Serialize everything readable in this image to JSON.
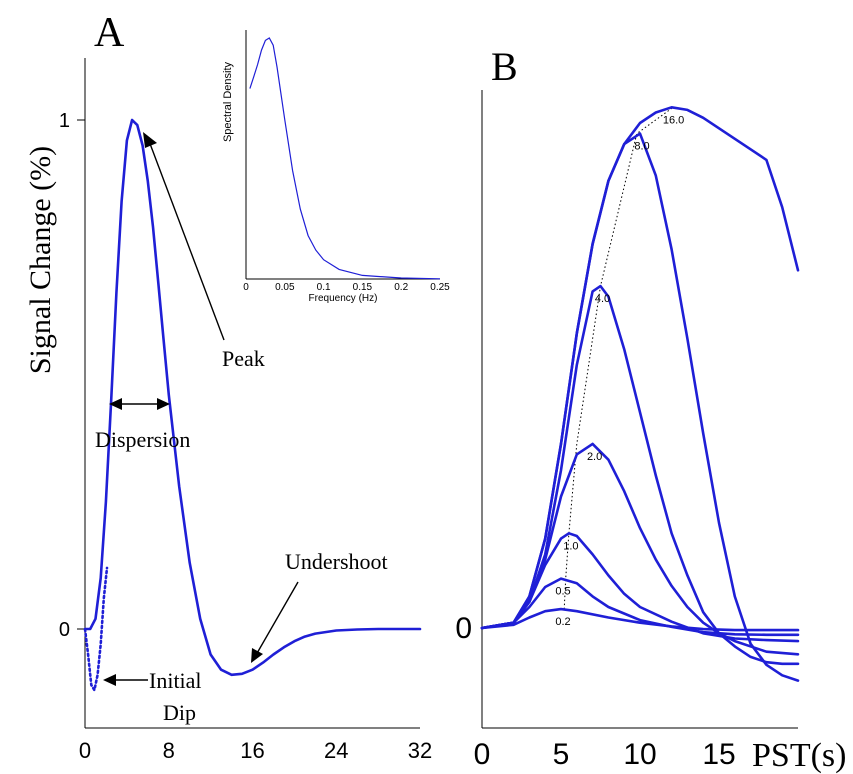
{
  "chart_data": [
    {
      "panel_label": "A",
      "type": "line",
      "ylabel": "Signal Change (%)",
      "x_ticks": [
        "0",
        "8",
        "16",
        "24",
        "32"
      ],
      "y_ticks": [
        "0",
        "1"
      ],
      "xlim": [
        0,
        32
      ],
      "ylim": [
        -0.15,
        1.1
      ],
      "series": [
        {
          "style": "solid",
          "x": [
            0,
            0.5,
            1,
            1.5,
            2,
            2.5,
            3,
            3.5,
            4,
            4.5,
            5,
            5.5,
            6,
            6.5,
            7,
            7.5,
            8,
            9,
            10,
            11,
            12,
            13,
            14,
            15,
            16,
            17,
            18,
            19,
            20,
            21,
            22,
            24,
            26,
            28,
            30,
            32
          ],
          "y": [
            0,
            0.0,
            0.02,
            0.1,
            0.25,
            0.45,
            0.66,
            0.84,
            0.96,
            1.0,
            0.99,
            0.95,
            0.88,
            0.79,
            0.68,
            0.57,
            0.46,
            0.28,
            0.13,
            0.02,
            -0.05,
            -0.08,
            -0.09,
            -0.088,
            -0.08,
            -0.066,
            -0.05,
            -0.036,
            -0.024,
            -0.015,
            -0.009,
            -0.003,
            -0.001,
            0.0,
            0.0,
            0.0
          ]
        },
        {
          "style": "dotted",
          "x": [
            0,
            0.3,
            0.6,
            0.9,
            1.2,
            1.5,
            1.8,
            2.1
          ],
          "y": [
            0,
            -0.05,
            -0.11,
            -0.12,
            -0.09,
            -0.03,
            0.06,
            0.12
          ]
        }
      ],
      "annotations": [
        {
          "text": "Peak"
        },
        {
          "text": "Dispersion"
        },
        {
          "text": "Undershoot"
        },
        {
          "text": "Initial"
        },
        {
          "text": "Dip"
        }
      ],
      "inset": {
        "type": "line",
        "ylabel": "Spectral Density",
        "xlabel": "Frequency (Hz)",
        "x_ticks": [
          "0",
          "0.05",
          "0.1",
          "0.15",
          "0.2",
          "0.25"
        ],
        "xlim": [
          0,
          0.25
        ],
        "ylim": [
          0,
          1.0
        ],
        "x": [
          0.005,
          0.01,
          0.015,
          0.02,
          0.025,
          0.03,
          0.035,
          0.04,
          0.05,
          0.06,
          0.07,
          0.08,
          0.09,
          0.1,
          0.12,
          0.15,
          0.2,
          0.25
        ],
        "y": [
          0.79,
          0.84,
          0.89,
          0.95,
          0.99,
          1.0,
          0.97,
          0.88,
          0.66,
          0.45,
          0.29,
          0.18,
          0.12,
          0.08,
          0.04,
          0.015,
          0.004,
          0.001
        ]
      }
    },
    {
      "panel_label": "B",
      "type": "line",
      "x_ticks": [
        "0",
        "5",
        "10",
        "15"
      ],
      "x_axis_label": "PST(s)",
      "y_ticks": [
        "0"
      ],
      "xlim": [
        0,
        20
      ],
      "ylim": [
        -0.1,
        1.0
      ],
      "series": [
        {
          "name": "0.2",
          "x": [
            0,
            2,
            3,
            4,
            5,
            6,
            8,
            10,
            12,
            14,
            16,
            18,
            20
          ],
          "y": [
            0,
            0.006,
            0.02,
            0.032,
            0.036,
            0.032,
            0.02,
            0.01,
            0.003,
            -0.002,
            -0.004,
            -0.004,
            -0.004
          ]
        },
        {
          "name": "0.5",
          "x": [
            0,
            2,
            3,
            4,
            5,
            6,
            7,
            8,
            10,
            12,
            14,
            16,
            18,
            20
          ],
          "y": [
            0,
            0.01,
            0.04,
            0.078,
            0.094,
            0.085,
            0.06,
            0.04,
            0.015,
            0.002,
            -0.008,
            -0.012,
            -0.013,
            -0.013
          ]
        },
        {
          "name": "1.0",
          "x": [
            0,
            2,
            3,
            4,
            5,
            5.5,
            6,
            7,
            8,
            9,
            10,
            12,
            14,
            16,
            18,
            20
          ],
          "y": [
            0,
            0.01,
            0.05,
            0.12,
            0.17,
            0.18,
            0.175,
            0.14,
            0.1,
            0.065,
            0.04,
            0.012,
            -0.01,
            -0.02,
            -0.023,
            -0.025
          ]
        },
        {
          "name": "2.0",
          "x": [
            0,
            2,
            3,
            4,
            5,
            6,
            7,
            8,
            9,
            10,
            11,
            12,
            13,
            14,
            15,
            16,
            18,
            20
          ],
          "y": [
            0,
            0.01,
            0.05,
            0.13,
            0.25,
            0.33,
            0.35,
            0.32,
            0.26,
            0.19,
            0.13,
            0.08,
            0.04,
            0.01,
            -0.01,
            -0.025,
            -0.045,
            -0.05
          ]
        },
        {
          "name": "4.0",
          "x": [
            0,
            2,
            3,
            4,
            5,
            6,
            7,
            7.5,
            8,
            9,
            10,
            11,
            12,
            13,
            14,
            15,
            16,
            17,
            18,
            19,
            20
          ],
          "y": [
            0,
            0.01,
            0.05,
            0.14,
            0.3,
            0.5,
            0.64,
            0.65,
            0.63,
            0.53,
            0.41,
            0.29,
            0.18,
            0.1,
            0.03,
            -0.01,
            -0.035,
            -0.055,
            -0.065,
            -0.068,
            -0.068
          ]
        },
        {
          "name": "8.0",
          "x": [
            0,
            2,
            3,
            4,
            5,
            6,
            7,
            8,
            9,
            10,
            11,
            12,
            13,
            14,
            15,
            16,
            17,
            18,
            19,
            20
          ],
          "y": [
            0,
            0.01,
            0.06,
            0.17,
            0.35,
            0.56,
            0.73,
            0.85,
            0.92,
            0.94,
            0.86,
            0.72,
            0.55,
            0.37,
            0.2,
            0.06,
            -0.03,
            -0.07,
            -0.09,
            -0.1
          ]
        },
        {
          "name": "16.0",
          "x": [
            0,
            2,
            3,
            4,
            5,
            6,
            7,
            8,
            9,
            10,
            11,
            12,
            13,
            14,
            15,
            16,
            17,
            18,
            19,
            20
          ],
          "y": [
            0,
            0.01,
            0.06,
            0.17,
            0.35,
            0.56,
            0.73,
            0.85,
            0.92,
            0.96,
            0.98,
            0.99,
            0.985,
            0.97,
            0.95,
            0.93,
            0.91,
            0.89,
            0.8,
            0.68
          ]
        }
      ],
      "peak_path": {
        "style": "dotted",
        "x": [
          5.2,
          5.3,
          5.5,
          6.0,
          7.5,
          9.8,
          12.1
        ],
        "y": [
          0.036,
          0.094,
          0.18,
          0.35,
          0.65,
          0.94,
          0.99
        ]
      }
    }
  ]
}
